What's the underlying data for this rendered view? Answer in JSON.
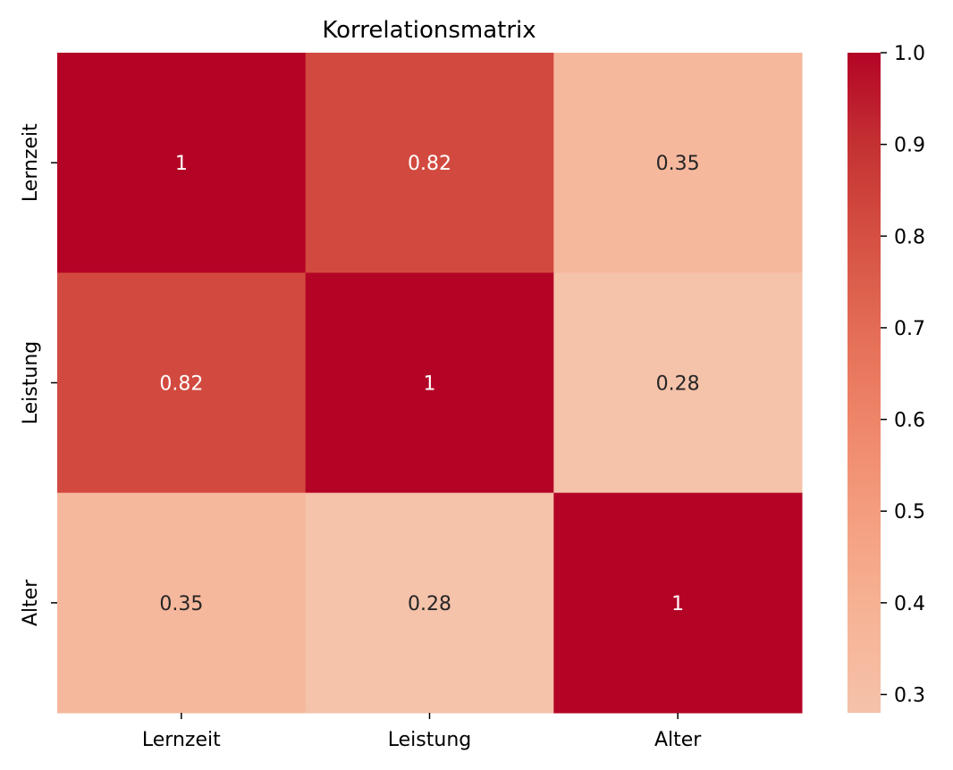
{
  "chart_data": {
    "type": "heatmap",
    "title": "Korrelationsmatrix",
    "xlabel": "",
    "ylabel": "",
    "x_categories": [
      "Lernzeit",
      "Leistung",
      "Alter"
    ],
    "y_categories": [
      "Lernzeit",
      "Leistung",
      "Alter"
    ],
    "values": [
      [
        1,
        0.82,
        0.35
      ],
      [
        0.82,
        1,
        0.28
      ],
      [
        0.35,
        0.28,
        1
      ]
    ],
    "annotations": [
      [
        "1",
        "0.82",
        "0.35"
      ],
      [
        "0.82",
        "1",
        "0.28"
      ],
      [
        "0.35",
        "0.28",
        "1"
      ]
    ],
    "colorbar": {
      "range": [
        0.28,
        1.0
      ],
      "ticks": [
        0.3,
        0.4,
        0.5,
        0.6,
        0.7,
        0.8,
        0.9,
        1.0
      ],
      "tick_labels": [
        "0.3",
        "0.4",
        "0.5",
        "0.6",
        "0.7",
        "0.8",
        "0.9",
        "1.0"
      ],
      "placement": "right"
    },
    "colormap_stops": [
      {
        "v": 0.28,
        "color": "#f5c2aa"
      },
      {
        "v": 0.4,
        "color": "#f6b193"
      },
      {
        "v": 0.5,
        "color": "#f49d7e"
      },
      {
        "v": 0.6,
        "color": "#ee8569"
      },
      {
        "v": 0.7,
        "color": "#e36c55"
      },
      {
        "v": 0.8,
        "color": "#d55042"
      },
      {
        "v": 0.9,
        "color": "#c43133"
      },
      {
        "v": 1.0,
        "color": "#b40426"
      }
    ]
  }
}
